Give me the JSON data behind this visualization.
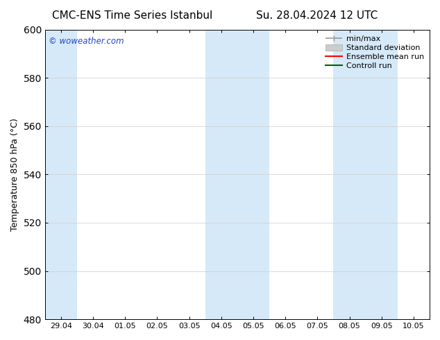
{
  "title_left": "CMC-ENS Time Series Istanbul",
  "title_right": "Su. 28.04.2024 12 UTC",
  "ylabel": "Temperature 850 hPa (°C)",
  "ylim": [
    480,
    600
  ],
  "yticks": [
    480,
    500,
    520,
    540,
    560,
    580,
    600
  ],
  "xtick_labels": [
    "29.04",
    "30.04",
    "01.05",
    "02.05",
    "03.05",
    "04.05",
    "05.05",
    "06.05",
    "07.05",
    "08.05",
    "09.05",
    "10.05"
  ],
  "shaded_bands": [
    {
      "xstart": 0,
      "xend": 1,
      "color": "#d6e9f8"
    },
    {
      "xstart": 5,
      "xend": 7,
      "color": "#d6e9f8"
    },
    {
      "xstart": 9,
      "xend": 11,
      "color": "#d6e9f8"
    }
  ],
  "legend_entries": [
    {
      "label": "min/max",
      "color": "#999999",
      "lw": 1.2,
      "style": "minmax"
    },
    {
      "label": "Standard deviation",
      "color": "#cccccc",
      "lw": 5,
      "style": "band"
    },
    {
      "label": "Ensemble mean run",
      "color": "#ff0000",
      "lw": 1.5,
      "style": "line"
    },
    {
      "label": "Controll run",
      "color": "#006400",
      "lw": 1.5,
      "style": "line"
    }
  ],
  "watermark": "© woweather.com",
  "watermark_color": "#2244cc",
  "bg_color": "#ffffff",
  "plot_bg_color": "#ffffff",
  "border_color": "#000000",
  "title_fontsize": 11,
  "label_fontsize": 9,
  "tick_fontsize": 8,
  "legend_fontsize": 8
}
